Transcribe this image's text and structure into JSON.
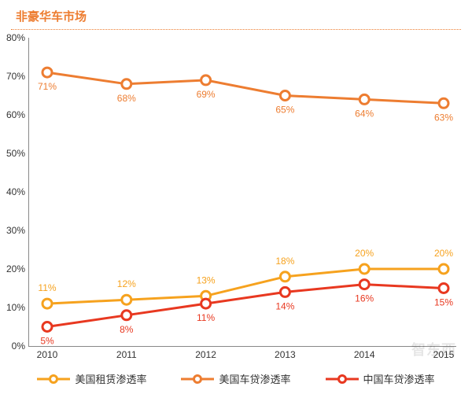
{
  "title": "非豪华车市场",
  "watermark": "智东西",
  "chart": {
    "type": "line",
    "categories": [
      "2010",
      "2011",
      "2012",
      "2013",
      "2014",
      "2015"
    ],
    "series": [
      {
        "name": "美国租赁渗透率",
        "color": "#f6a21e",
        "values": [
          11,
          12,
          13,
          18,
          20,
          20
        ],
        "labels": [
          "11%",
          "12%",
          "13%",
          "18%",
          "20%",
          "20%"
        ],
        "label_pos": [
          "above",
          "above",
          "above",
          "above",
          "above",
          "above"
        ]
      },
      {
        "name": "美国车贷渗透率",
        "color": "#ed7d31",
        "values": [
          71,
          68,
          69,
          65,
          64,
          63
        ],
        "labels": [
          "71%",
          "68%",
          "69%",
          "65%",
          "64%",
          "63%"
        ],
        "label_pos": [
          "below",
          "below",
          "below",
          "below",
          "below",
          "below"
        ]
      },
      {
        "name": "中国车贷渗透率",
        "color": "#e83820",
        "values": [
          5,
          8,
          11,
          14,
          16,
          15
        ],
        "labels": [
          "5%",
          "8%",
          "11%",
          "14%",
          "16%",
          "15%"
        ],
        "label_pos": [
          "below",
          "below",
          "below",
          "below",
          "below",
          "below"
        ]
      }
    ],
    "ylim": [
      0,
      80
    ],
    "ytick_step": 10,
    "y_format_suffix": "%",
    "line_width": 3,
    "marker_radius": 6,
    "marker_fill": "#ffffff",
    "value_label_fontsize": 12,
    "value_label_offset": 16,
    "axis_color": "#888888",
    "background_color": "#ffffff"
  }
}
